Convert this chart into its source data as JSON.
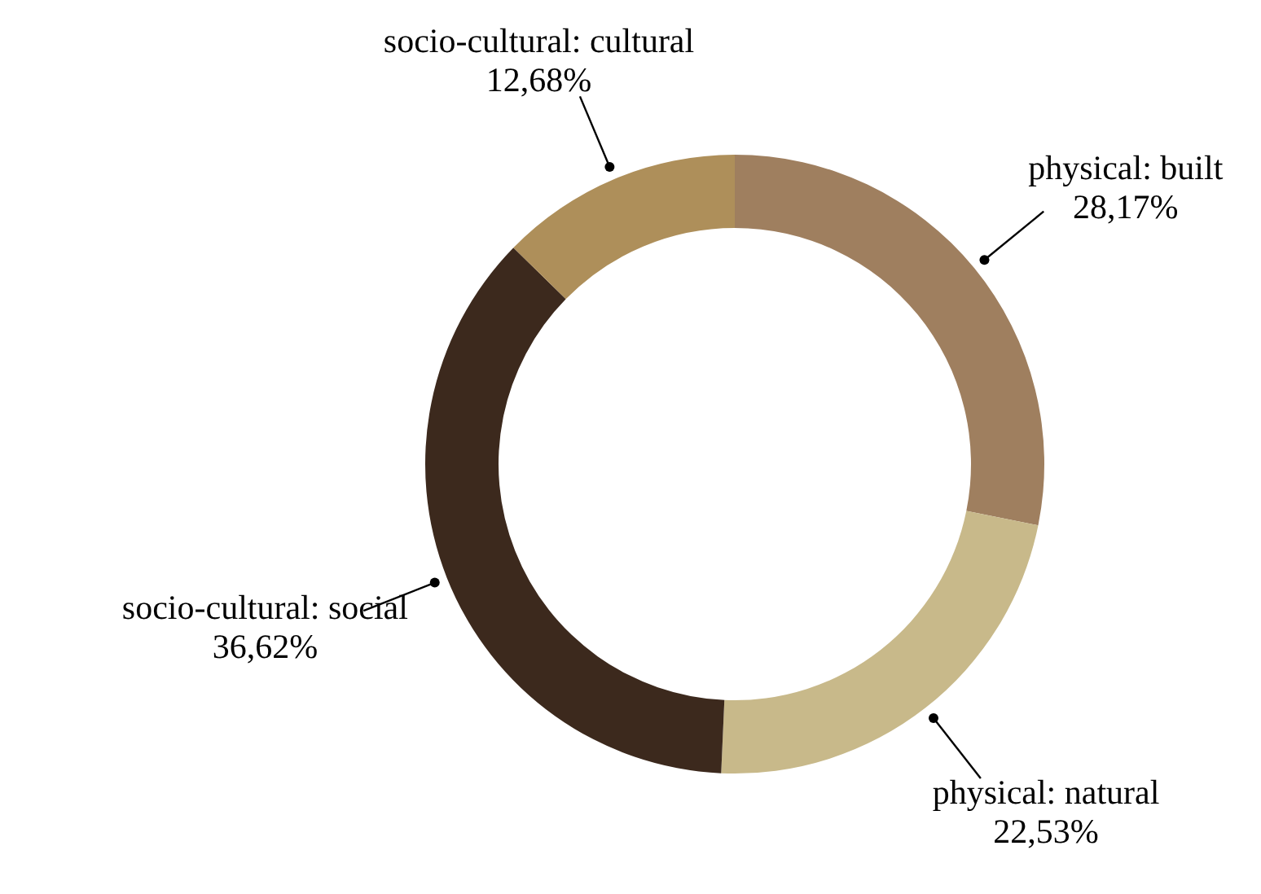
{
  "chart_data": {
    "type": "donut",
    "categories": [
      "physical: built",
      "physical: natural",
      "socio-cultural: social",
      "socio-cultural: cultural"
    ],
    "values": [
      28.17,
      22.53,
      36.62,
      12.68
    ],
    "value_labels": [
      "28,17%",
      "22,53%",
      "36,62%",
      "12,68%"
    ],
    "colors": [
      "#9f7f5f",
      "#c8b98a",
      "#3c291d",
      "#ae8f5a"
    ]
  }
}
